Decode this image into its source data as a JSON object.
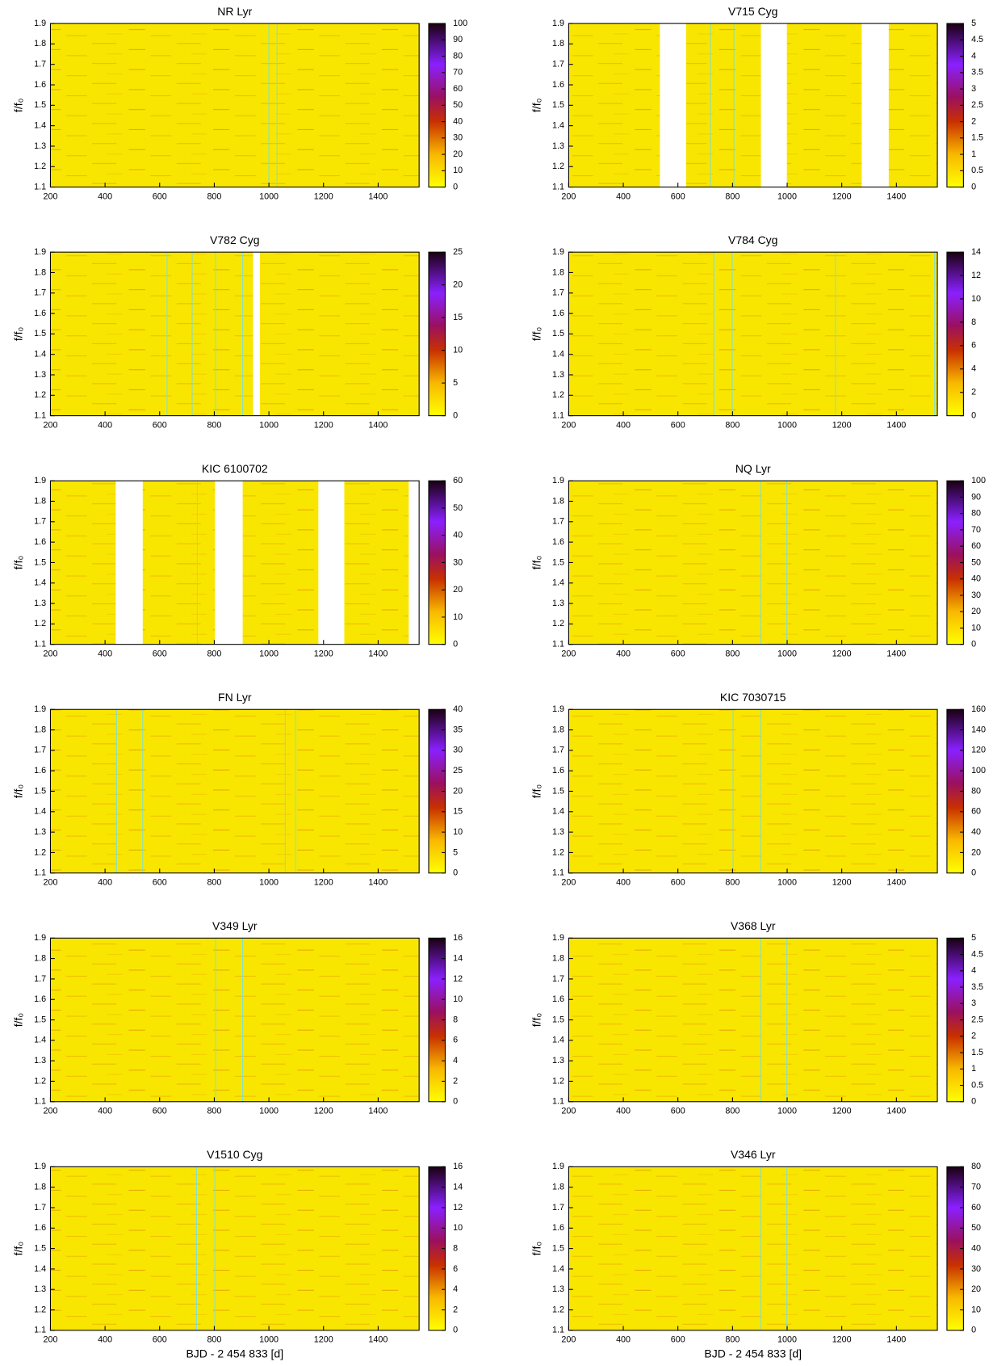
{
  "chart_data": [
    {
      "type": "heatmap",
      "title": "NR Lyr",
      "ylabel": "f/f₀",
      "xlim": [
        200,
        1550
      ],
      "xticks": [
        200,
        400,
        600,
        800,
        1000,
        1200,
        1400
      ],
      "ylim": [
        1.1,
        1.9
      ],
      "yticks": [
        1.1,
        1.2,
        1.3,
        1.4,
        1.5,
        1.6,
        1.7,
        1.8,
        1.9
      ],
      "clim": [
        0,
        100
      ],
      "cticks": [
        0,
        10,
        20,
        30,
        40,
        50,
        60,
        70,
        80,
        90,
        100
      ],
      "gaps": [],
      "markers": [
        1000,
        1030
      ],
      "marker_color": "#7fe0d0"
    },
    {
      "type": "heatmap",
      "title": "V715 Cyg",
      "ylabel": "f/f₀",
      "xlim": [
        200,
        1550
      ],
      "xticks": [
        200,
        400,
        600,
        800,
        1000,
        1200,
        1400
      ],
      "ylim": [
        1.1,
        1.9
      ],
      "yticks": [
        1.1,
        1.2,
        1.3,
        1.4,
        1.5,
        1.6,
        1.7,
        1.8,
        1.9
      ],
      "clim": [
        0,
        5
      ],
      "cticks": [
        0,
        0.5,
        1,
        1.5,
        2,
        2.5,
        3,
        3.5,
        4,
        4.5,
        5
      ],
      "gaps": [
        [
          534,
          630
        ],
        [
          904,
          999
        ],
        [
          1273,
          1372
        ]
      ],
      "markers": [
        719,
        805
      ],
      "marker_color": "#7fe0d0"
    },
    {
      "type": "heatmap",
      "title": "V782 Cyg",
      "ylabel": "f/f₀",
      "xlim": [
        200,
        1550
      ],
      "xticks": [
        200,
        400,
        600,
        800,
        1000,
        1200,
        1400
      ],
      "ylim": [
        1.1,
        1.9
      ],
      "yticks": [
        1.1,
        1.2,
        1.3,
        1.4,
        1.5,
        1.6,
        1.7,
        1.8,
        1.9
      ],
      "clim": [
        0,
        25
      ],
      "cticks": [
        0,
        5,
        10,
        15,
        20,
        25
      ],
      "gaps": [
        [
          942,
          967
        ]
      ],
      "markers": [
        627,
        719,
        805,
        904
      ],
      "marker_color": "#7fe0d0"
    },
    {
      "type": "heatmap",
      "title": "V784 Cyg",
      "ylabel": "f/f₀",
      "xlim": [
        200,
        1550
      ],
      "xticks": [
        200,
        400,
        600,
        800,
        1000,
        1200,
        1400
      ],
      "ylim": [
        1.1,
        1.9
      ],
      "yticks": [
        1.1,
        1.2,
        1.3,
        1.4,
        1.5,
        1.6,
        1.7,
        1.8,
        1.9
      ],
      "clim": [
        0,
        14
      ],
      "cticks": [
        0,
        2,
        4,
        6,
        8,
        10,
        12,
        14
      ],
      "gaps": [],
      "markers": [
        732,
        799,
        1177,
        1540
      ],
      "marker_color": "#7fe0d0"
    },
    {
      "type": "heatmap",
      "title": "KIC 6100702",
      "ylabel": "f/f₀",
      "xlim": [
        200,
        1550
      ],
      "xticks": [
        200,
        400,
        600,
        800,
        1000,
        1200,
        1400
      ],
      "ylim": [
        1.1,
        1.9
      ],
      "yticks": [
        1.1,
        1.2,
        1.3,
        1.4,
        1.5,
        1.6,
        1.7,
        1.8,
        1.9
      ],
      "clim": [
        0,
        60
      ],
      "cticks": [
        0,
        10,
        20,
        30,
        40,
        50,
        60
      ],
      "gaps": [
        [
          439,
          538
        ],
        [
          802,
          904
        ],
        [
          1181,
          1276
        ],
        [
          1512,
          1550
        ]
      ],
      "markers": [
        738
      ],
      "marker_color": "#7fe0d0"
    },
    {
      "type": "heatmap",
      "title": "NQ Lyr",
      "ylabel": "f/f₀",
      "xlim": [
        200,
        1550
      ],
      "xticks": [
        200,
        400,
        600,
        800,
        1000,
        1200,
        1400
      ],
      "ylim": [
        1.1,
        1.9
      ],
      "yticks": [
        1.1,
        1.2,
        1.3,
        1.4,
        1.5,
        1.6,
        1.7,
        1.8,
        1.9
      ],
      "clim": [
        0,
        100
      ],
      "cticks": [
        0,
        10,
        20,
        30,
        40,
        50,
        60,
        70,
        80,
        90,
        100
      ],
      "gaps": [],
      "markers": [
        904,
        999
      ],
      "marker_color": "#7fe0d0"
    },
    {
      "type": "heatmap",
      "title": "FN Lyr",
      "ylabel": "f/f₀",
      "xlim": [
        200,
        1550
      ],
      "xticks": [
        200,
        400,
        600,
        800,
        1000,
        1200,
        1400
      ],
      "ylim": [
        1.1,
        1.9
      ],
      "yticks": [
        1.1,
        1.2,
        1.3,
        1.4,
        1.5,
        1.6,
        1.7,
        1.8,
        1.9
      ],
      "clim": [
        0,
        40
      ],
      "cticks": [
        0,
        5,
        10,
        15,
        20,
        25,
        30,
        35,
        40
      ],
      "gaps": [],
      "markers": [
        442,
        538,
        1060,
        1098
      ],
      "marker_color": "#7fe0d0"
    },
    {
      "type": "heatmap",
      "title": "KIC 7030715",
      "ylabel": "f/f₀",
      "xlim": [
        200,
        1550
      ],
      "xticks": [
        200,
        400,
        600,
        800,
        1000,
        1200,
        1400
      ],
      "ylim": [
        1.1,
        1.9
      ],
      "yticks": [
        1.1,
        1.2,
        1.3,
        1.4,
        1.5,
        1.6,
        1.7,
        1.8,
        1.9
      ],
      "clim": [
        0,
        160
      ],
      "cticks": [
        0,
        20,
        40,
        60,
        80,
        100,
        120,
        140,
        160
      ],
      "gaps": [],
      "markers": [
        802,
        904
      ],
      "marker_color": "#7fe0d0"
    },
    {
      "type": "heatmap",
      "title": "V349 Lyr",
      "ylabel": "f/f₀",
      "xlim": [
        200,
        1550
      ],
      "xticks": [
        200,
        400,
        600,
        800,
        1000,
        1200,
        1400
      ],
      "ylim": [
        1.1,
        1.9
      ],
      "yticks": [
        1.1,
        1.2,
        1.3,
        1.4,
        1.5,
        1.6,
        1.7,
        1.8,
        1.9
      ],
      "clim": [
        0,
        16
      ],
      "cticks": [
        0,
        2,
        4,
        6,
        8,
        10,
        12,
        14,
        16
      ],
      "gaps": [],
      "markers": [
        805,
        904
      ],
      "marker_color": "#7fe0d0"
    },
    {
      "type": "heatmap",
      "title": "V368 Lyr",
      "ylabel": "f/f₀",
      "xlim": [
        200,
        1550
      ],
      "xticks": [
        200,
        400,
        600,
        800,
        1000,
        1200,
        1400
      ],
      "ylim": [
        1.1,
        1.9
      ],
      "yticks": [
        1.1,
        1.2,
        1.3,
        1.4,
        1.5,
        1.6,
        1.7,
        1.8,
        1.9
      ],
      "clim": [
        0,
        5
      ],
      "cticks": [
        0,
        0.5,
        1,
        1.5,
        2,
        2.5,
        3,
        3.5,
        4,
        4.5,
        5
      ],
      "gaps": [],
      "markers": [
        904,
        999
      ],
      "marker_color": "#7fe0d0"
    },
    {
      "type": "heatmap",
      "title": "V1510 Cyg",
      "ylabel": "f/f₀",
      "xlabel": "BJD - 2 454 833 [d]",
      "xlim": [
        200,
        1550
      ],
      "xticks": [
        200,
        400,
        600,
        800,
        1000,
        1200,
        1400
      ],
      "ylim": [
        1.1,
        1.9
      ],
      "yticks": [
        1.1,
        1.2,
        1.3,
        1.4,
        1.5,
        1.6,
        1.7,
        1.8,
        1.9
      ],
      "clim": [
        0,
        16
      ],
      "cticks": [
        0,
        2,
        4,
        6,
        8,
        10,
        12,
        14,
        16
      ],
      "gaps": [],
      "markers": [
        735,
        802
      ],
      "marker_color": "#7fe0d0"
    },
    {
      "type": "heatmap",
      "title": "V346 Lyr",
      "ylabel": "f/f₀",
      "xlabel": "BJD - 2 454 833 [d]",
      "xlim": [
        200,
        1550
      ],
      "xticks": [
        200,
        400,
        600,
        800,
        1000,
        1200,
        1400
      ],
      "ylim": [
        1.1,
        1.9
      ],
      "yticks": [
        1.1,
        1.2,
        1.3,
        1.4,
        1.5,
        1.6,
        1.7,
        1.8,
        1.9
      ],
      "clim": [
        0,
        80
      ],
      "cticks": [
        0,
        10,
        20,
        30,
        40,
        50,
        60,
        70,
        80
      ],
      "gaps": [],
      "markers": [
        904,
        999
      ],
      "marker_color": "#7fe0d0"
    }
  ]
}
